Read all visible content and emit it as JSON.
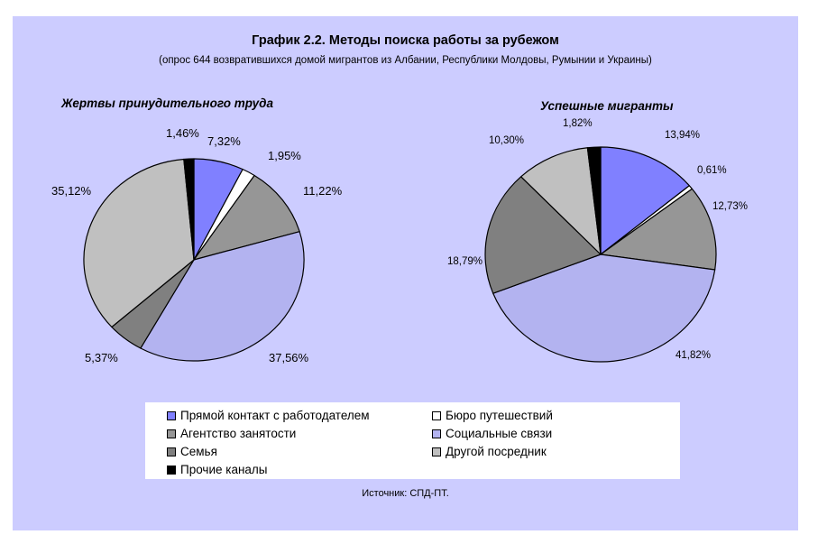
{
  "figure": {
    "title": "График 2.2. Методы поиска работы за рубежом",
    "subtitle": "(опрос 644 возвратившихся домой мигрантов из Албании, Республики Молдовы, Румынии и Украины)",
    "source": "Источник: СПД-ПТ."
  },
  "legend": [
    {
      "name": "Прямой контакт с работодателем",
      "color": "#8080ff"
    },
    {
      "name": "Бюро путешествий",
      "color": "#ffffff"
    },
    {
      "name": "Агентство занятости",
      "color": "#969696"
    },
    {
      "name": "Социальные связи",
      "color": "#b3b3f0"
    },
    {
      "name": "Семья",
      "color": "#808080"
    },
    {
      "name": "Другой посредник",
      "color": "#c0c0c0"
    },
    {
      "name": "Прочие каналы",
      "color": "#000000"
    }
  ],
  "chart_data": [
    {
      "type": "pie",
      "title": "Жертвы принудительного труда",
      "categories": [
        "Прямой контакт с работодателем",
        "Бюро путешествий",
        "Агентство занятости",
        "Социальные связи",
        "Семья",
        "Другой посредник",
        "Прочие каналы"
      ],
      "values": [
        7.32,
        1.95,
        11.22,
        37.56,
        5.37,
        35.12,
        1.46
      ],
      "value_labels": [
        "7,32%",
        "1,95%",
        "11,22%",
        "37,56%",
        "5,37%",
        "35,12%",
        "1,46%"
      ]
    },
    {
      "type": "pie",
      "title": "Успешные мигранты",
      "categories": [
        "Прямой контакт с работодателем",
        "Бюро путешествий",
        "Агентство занятости",
        "Социальные связи",
        "Семья",
        "Другой посредник",
        "Прочие каналы"
      ],
      "values": [
        13.94,
        0.61,
        12.73,
        41.82,
        18.79,
        10.3,
        1.82
      ],
      "value_labels": [
        "13,94%",
        "0,61%",
        "12,73%",
        "41,82%",
        "18,79%",
        "10,30%",
        "1,82%"
      ]
    }
  ]
}
